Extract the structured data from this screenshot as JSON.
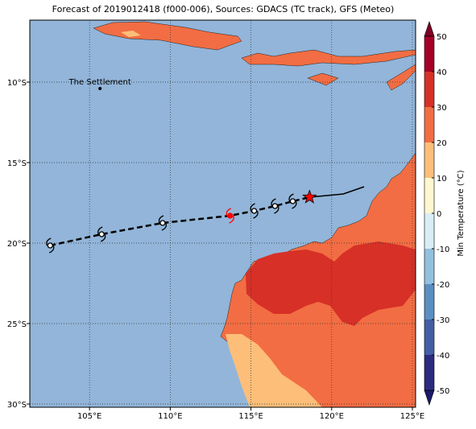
{
  "map": {
    "title": "Forecast of 2019012418 (f000-006), Sources: GDACS (TC track), GFS (Meteo)",
    "lon_range": [
      101.3,
      125.2
    ],
    "lat_range": [
      -6.15,
      -30.2
    ],
    "lon_ticks": [
      {
        "value": 105,
        "label": "105°E"
      },
      {
        "value": 110,
        "label": "110°E"
      },
      {
        "value": 115,
        "label": "115°E"
      },
      {
        "value": 120,
        "label": "120°E"
      },
      {
        "value": 125,
        "label": "125°E"
      }
    ],
    "lat_ticks": [
      {
        "value": -10,
        "label": "10°S"
      },
      {
        "value": -15,
        "label": "15°S"
      },
      {
        "value": -20,
        "label": "20°S"
      },
      {
        "value": -25,
        "label": "25°S"
      },
      {
        "value": -30,
        "label": "30°S"
      }
    ],
    "grid": true,
    "place": {
      "label": "The Settlement",
      "lon": 105.65,
      "lat": -10.4
    },
    "forecast_track": {
      "lon": [
        102.56,
        105.75,
        109.53,
        113.71,
        115.2,
        116.49,
        117.59,
        118.63
      ],
      "lat": [
        -20.15,
        -19.45,
        -18.75,
        -18.3,
        -18.0,
        -17.7,
        -17.4,
        -17.15
      ],
      "symbol_colors": [
        "#000000",
        "#000000",
        "#000000",
        "#ff0000",
        "#000000",
        "#000000",
        "#000000",
        "#ff0000"
      ]
    },
    "past_track": {
      "lon": [
        118.63,
        120.72,
        122.01
      ],
      "lat": [
        -17.15,
        -16.95,
        -16.5
      ]
    },
    "colorbar": {
      "label": "Min Temperature (°C)",
      "ticks": [
        -50,
        -40,
        -30,
        -20,
        -10,
        0,
        10,
        20,
        30,
        40,
        50
      ],
      "colors": [
        "#2b2c7f",
        "#445ea5",
        "#5a8fc2",
        "#92c0df",
        "#d8eef5",
        "#fff7cf",
        "#fdbe79",
        "#f26d43",
        "#d73027",
        "#a50026"
      ],
      "under": "#1a1a6b",
      "over": "#7f0026"
    }
  }
}
